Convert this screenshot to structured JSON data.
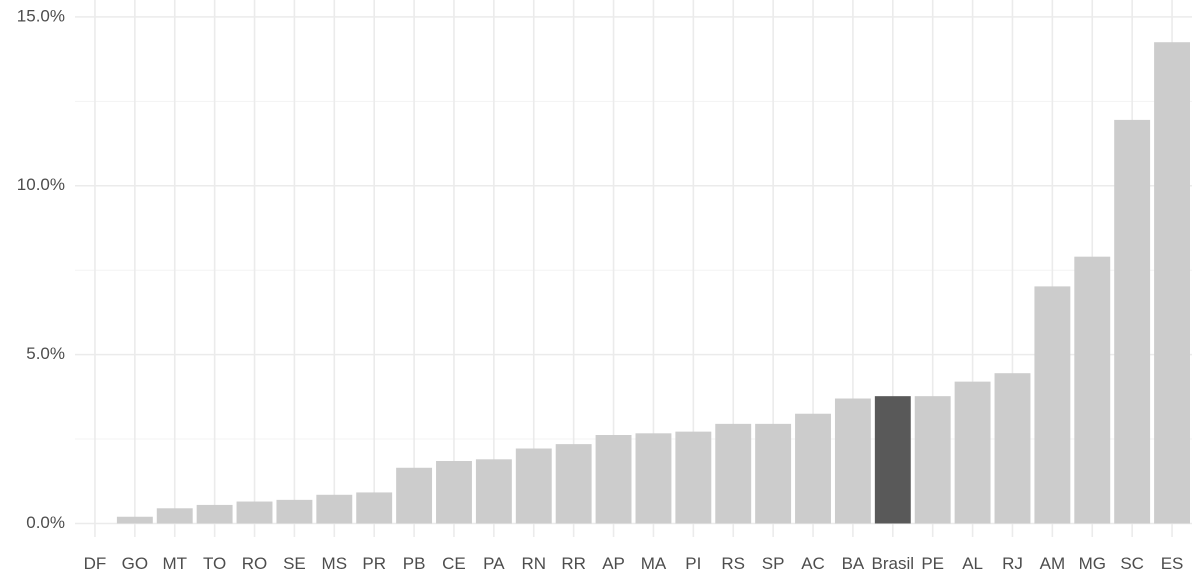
{
  "colors": {
    "bar": "#cccccc",
    "highlight": "#595959",
    "grid_major": "#ebebeb",
    "grid_minor": "#f3f3f3",
    "text": "#4d4d4d"
  },
  "chart_data": {
    "type": "bar",
    "title": "",
    "xlabel": "",
    "ylabel": "",
    "categories": [
      "DF",
      "GO",
      "MT",
      "TO",
      "RO",
      "SE",
      "MS",
      "PR",
      "PB",
      "CE",
      "PA",
      "RN",
      "RR",
      "AP",
      "MA",
      "PI",
      "RS",
      "SP",
      "AC",
      "BA",
      "Brasil",
      "PE",
      "AL",
      "RJ",
      "AM",
      "MG",
      "SC",
      "ES"
    ],
    "values": [
      0.0,
      0.2,
      0.45,
      0.55,
      0.65,
      0.7,
      0.85,
      0.92,
      1.65,
      1.85,
      1.9,
      2.22,
      2.35,
      2.62,
      2.67,
      2.72,
      2.95,
      2.95,
      3.25,
      3.7,
      3.77,
      3.77,
      4.2,
      4.45,
      7.02,
      7.9,
      11.95,
      14.25
    ],
    "highlight_category": "Brasil",
    "ylim": [
      -0.4,
      15.5
    ],
    "yticks": [
      0,
      5,
      10,
      15
    ],
    "ytick_labels": [
      "0.0%",
      "5.0%",
      "10.0%",
      "15.0%"
    ],
    "grid": true
  }
}
